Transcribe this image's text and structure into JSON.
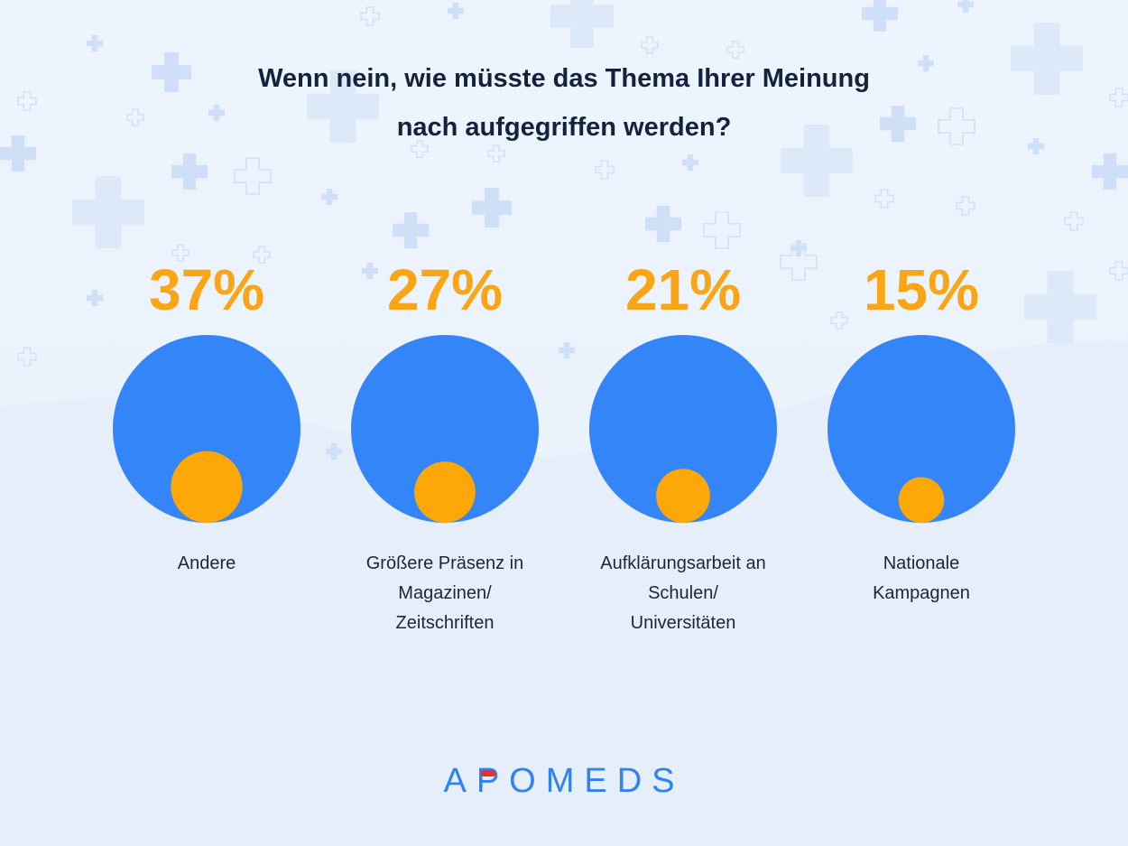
{
  "title": {
    "line1": "Wenn nein, wie müsste das Thema Ihrer Meinung",
    "line2": "nach aufgegriffen werden?"
  },
  "colors": {
    "background": "#eaf1fb",
    "outer_circle": "#3486f8",
    "inner_circle": "#fea807",
    "percent_text": "#f9a515",
    "label_text": "#1e2636",
    "title_text": "#14223d",
    "logo_blue": "#2f82f0",
    "logo_accent": "#e5312c"
  },
  "chart_data": {
    "type": "proportional-circles",
    "unit": "%",
    "categories": [
      "Andere",
      "Größere Präsenz in Magazinen/ Zeitschriften",
      "Aufklärungsarbeit an Schulen/ Universitäten",
      "Nationale Kampagnen"
    ],
    "category_lines": [
      [
        "Andere"
      ],
      [
        "Größere Präsenz in",
        "Magazinen/",
        "Zeitschriften"
      ],
      [
        "Aufklärungsarbeit an",
        "Schulen/",
        "Universitäten"
      ],
      [
        "Nationale",
        "Kampagnen"
      ]
    ],
    "values": [
      37,
      27,
      21,
      15
    ],
    "value_labels": [
      "37%",
      "27%",
      "21%",
      "15%"
    ]
  },
  "logo": {
    "text": "APOMEDS"
  }
}
